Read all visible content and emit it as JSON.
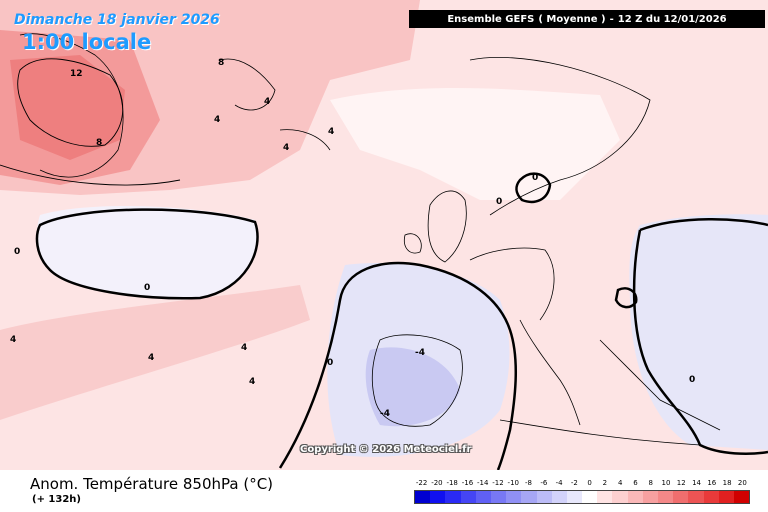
{
  "header": {
    "date": "Dimanche 18 janvier 2026",
    "local_time": "1:00 locale",
    "model_run": [
      "Ensemble GEFS",
      "( Moyenne )",
      "-",
      "12 Z du 12/01/2026"
    ]
  },
  "map": {
    "copyright": "Copyright © 2026 Meteociel.fr",
    "contour_labels": [
      "12",
      "8",
      "8",
      "4",
      "4",
      "4",
      "4",
      "0",
      "0",
      "0",
      "0",
      "0",
      "4",
      "4",
      "4",
      "4",
      "-4",
      "-4",
      "0"
    ]
  },
  "footer": {
    "parameter": "Anom. Température 850hPa (°C)",
    "lead_time": "(+ 132h)"
  },
  "legend": {
    "labels": [
      "-22",
      "-20",
      "-18",
      "-16",
      "-14",
      "-12",
      "-10",
      "-8",
      "-6",
      "-4",
      "-2",
      "0",
      "2",
      "4",
      "6",
      "8",
      "10",
      "12",
      "14",
      "16",
      "18",
      "20"
    ],
    "colors": [
      "#0000d0",
      "#1010f0",
      "#2a2af5",
      "#4545f5",
      "#6060f5",
      "#7878f5",
      "#9090f5",
      "#a6a6f5",
      "#bcbcf7",
      "#d2d2fa",
      "#e8e8fc",
      "#ffffff",
      "#ffe4e4",
      "#fdd0d0",
      "#fab8b8",
      "#f7a0a0",
      "#f48888",
      "#f06e6e",
      "#ec5454",
      "#e83a3a",
      "#e02020",
      "#d00000"
    ]
  }
}
